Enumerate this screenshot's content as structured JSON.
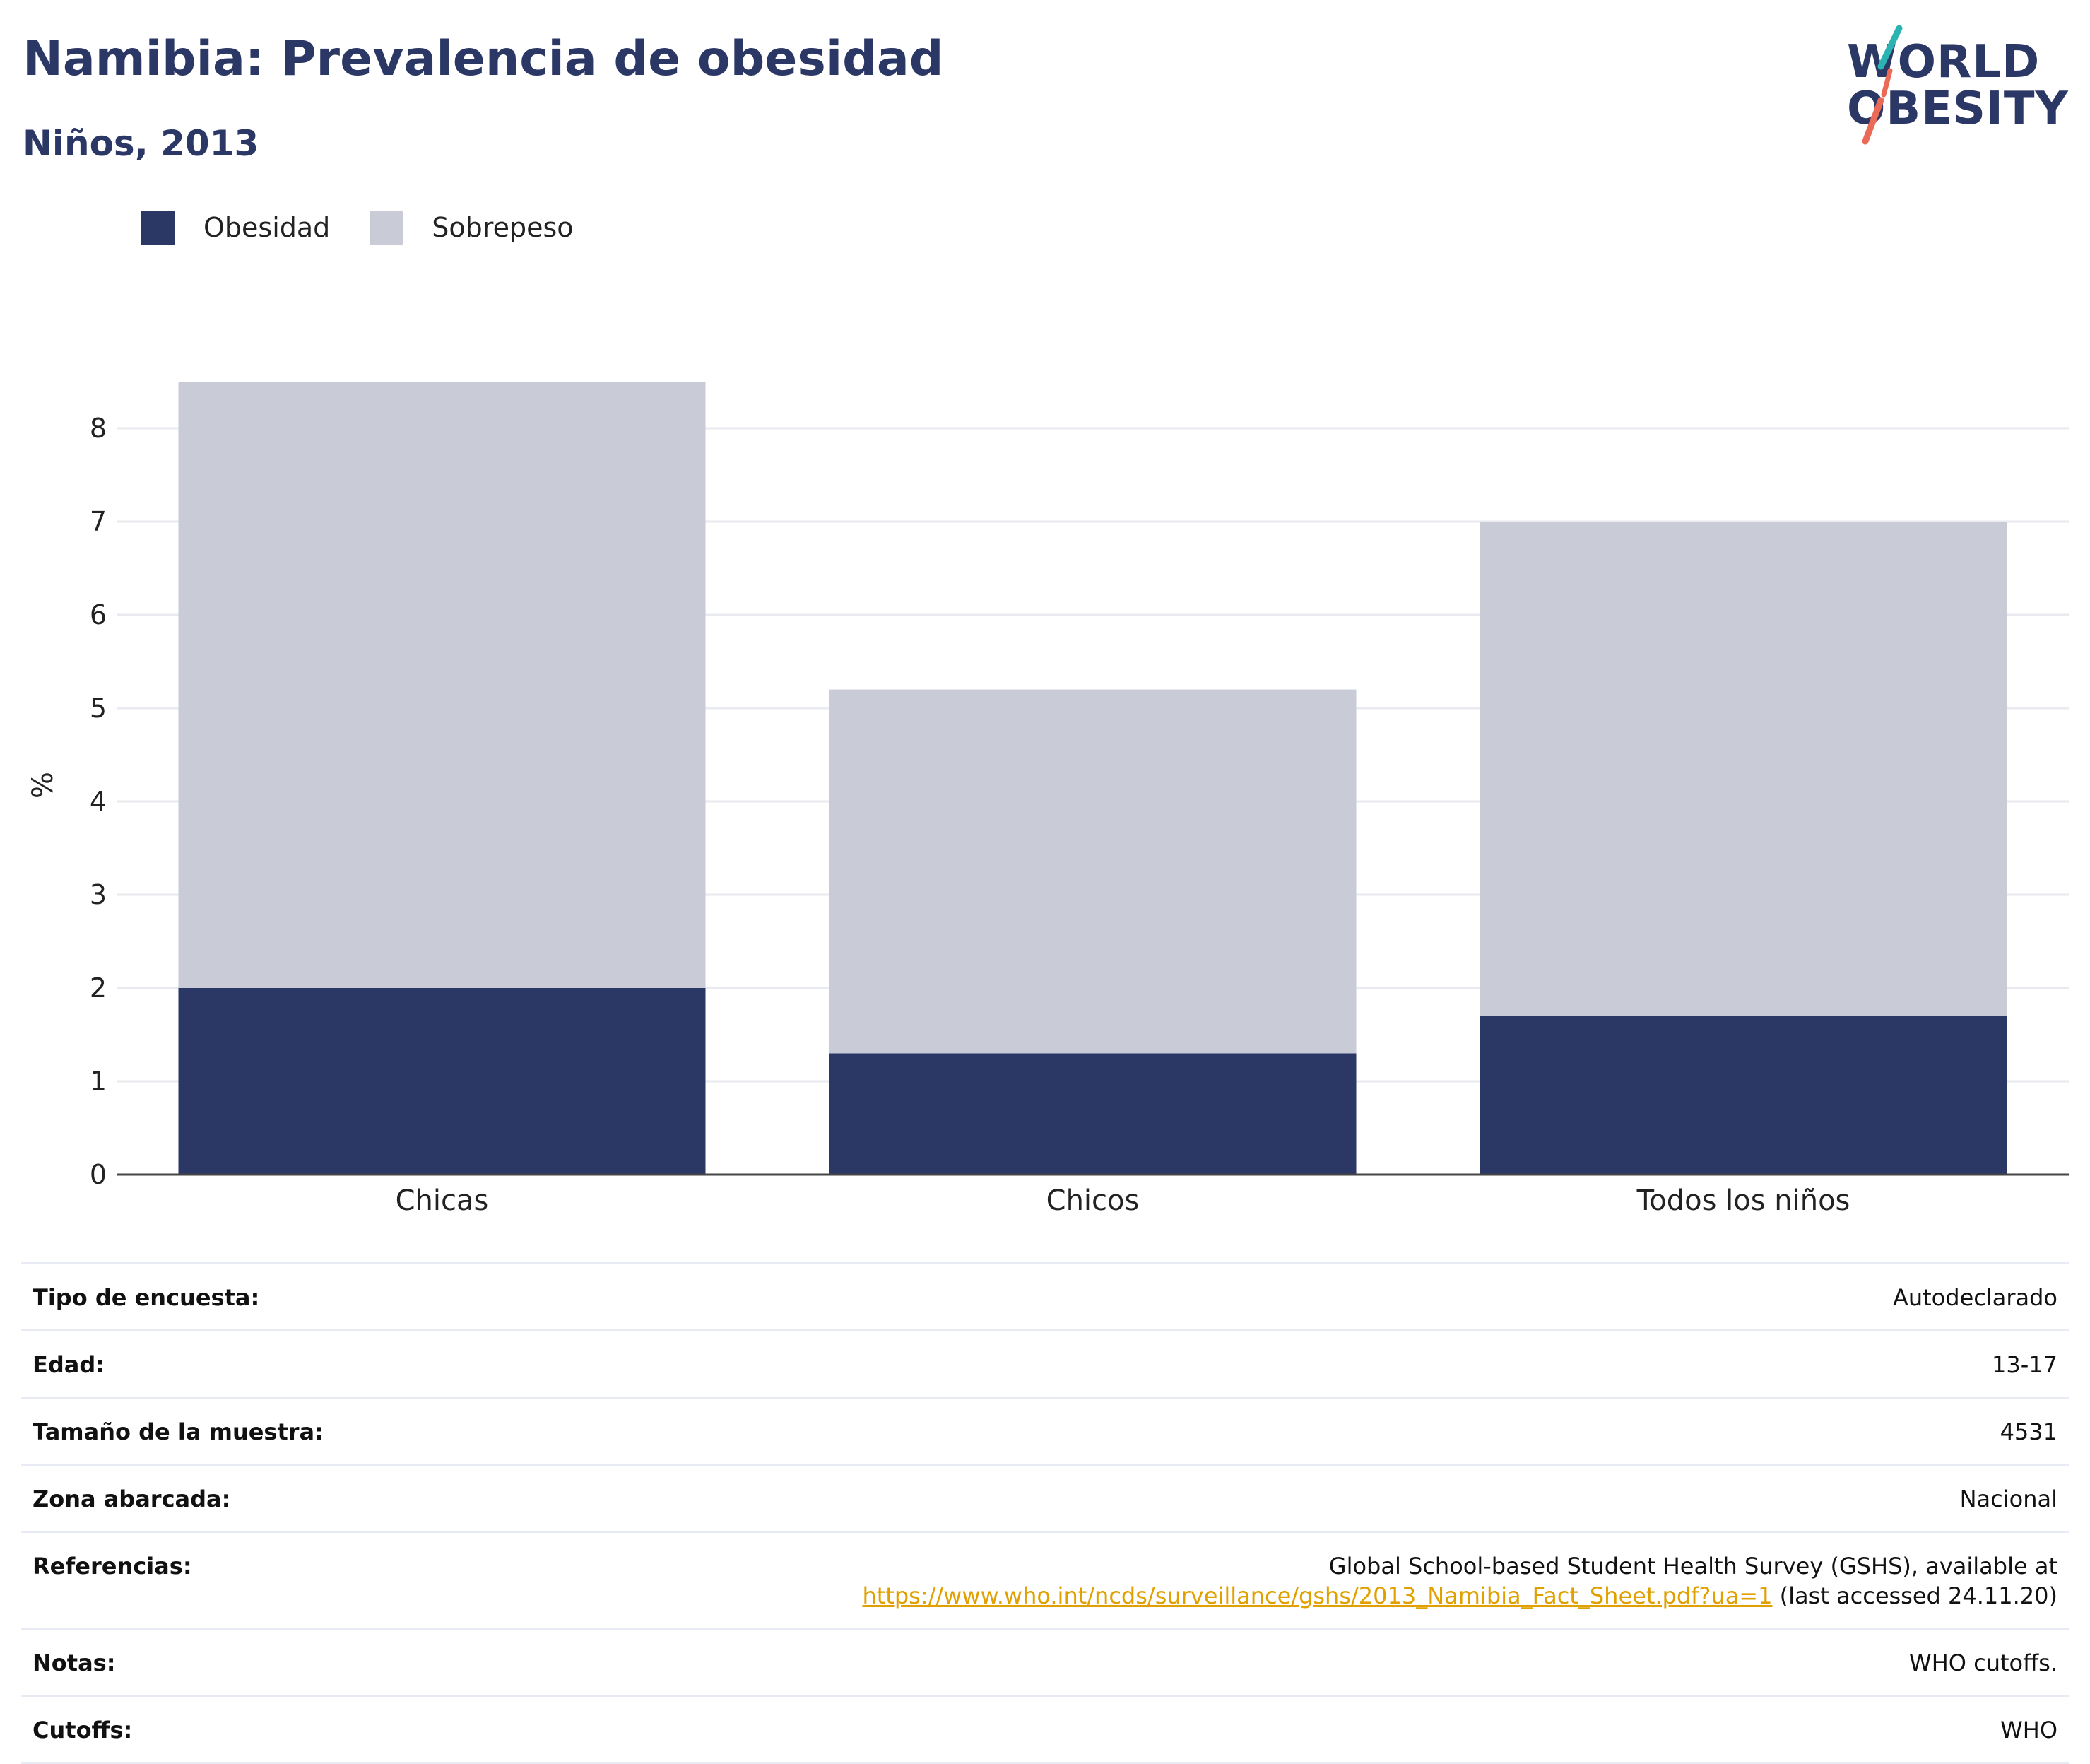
{
  "header": {
    "title": "Namibia: Prevalencia de obesidad",
    "subtitle": "Niños, 2013"
  },
  "logo": {
    "line1": "WORLD",
    "line2": "OBESITY"
  },
  "colors": {
    "obesidad": "#2b3765",
    "sobrepeso": "#c9cbd7",
    "title": "#2b3765",
    "link": "#e0a100",
    "logo_teal": "#2ab3b1",
    "logo_coral": "#ea6a57"
  },
  "chart_data": {
    "type": "bar",
    "stacked": true,
    "categories": [
      "Chicas",
      "Chicos",
      "Todos los niños"
    ],
    "series": [
      {
        "name": "Obesidad",
        "values": [
          2.0,
          1.3,
          1.7
        ]
      },
      {
        "name": "Sobrepeso",
        "values": [
          6.5,
          3.9,
          5.3
        ]
      }
    ],
    "ylabel": "%",
    "ylim": [
      0,
      8.5
    ],
    "yticks": [
      0,
      1,
      2,
      3,
      4,
      5,
      6,
      7,
      8
    ],
    "grid": true,
    "legend_position": "top-left"
  },
  "info": {
    "rows": [
      {
        "key": "Tipo de encuesta:",
        "value": "Autodeclarado"
      },
      {
        "key": "Edad:",
        "value": "13-17"
      },
      {
        "key": "Tamaño de la muestra:",
        "value": "4531"
      },
      {
        "key": "Zona abarcada:",
        "value": "Nacional"
      },
      {
        "key": "Referencias:",
        "value": "Global School-based Student Health Survey (GSHS), available at",
        "link": "https://www.who.int/ncds/surveillance/gshs/2013_Namibia_Fact_Sheet.pdf?ua=1",
        "suffix": " (last accessed 24.11.20)"
      },
      {
        "key": "Notas:",
        "value": "WHO cutoffs."
      },
      {
        "key": "Cutoffs:",
        "value": "WHO"
      }
    ]
  }
}
